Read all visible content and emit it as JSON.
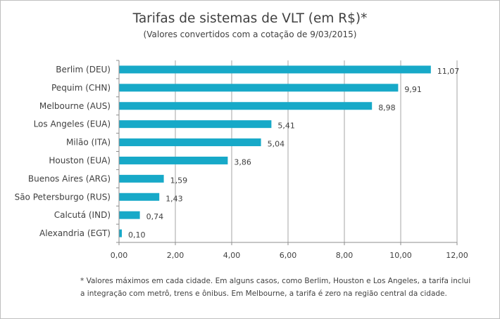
{
  "chart_data": {
    "type": "bar",
    "orientation": "horizontal",
    "title": "Tarifas de sistemas de VLT (em R$)*",
    "subtitle": "(Valores convertidos com a cotação de 9/03/2015)",
    "categories": [
      "Berlim (DEU)",
      "Pequim (CHN)",
      "Melbourne (AUS)",
      "Los Angeles (EUA)",
      "Milão (ITA)",
      "Houston (EUA)",
      "Buenos Aires (ARG)",
      "São Petersburgo (RUS)",
      "Calcutá (IND)",
      "Alexandria (EGT)"
    ],
    "values": [
      11.07,
      9.91,
      8.98,
      5.41,
      5.04,
      3.86,
      1.59,
      1.43,
      0.74,
      0.1
    ],
    "data_labels": [
      "11,07",
      "9,91",
      "8,98",
      "5,41",
      "5,04",
      "3,86",
      "1,59",
      "1,43",
      "0,74",
      "0,10"
    ],
    "xlim": [
      0,
      12
    ],
    "x_ticks": [
      0,
      2,
      4,
      6,
      8,
      10,
      12
    ],
    "x_tick_labels": [
      "0,00",
      "2,00",
      "4,00",
      "6,00",
      "8,00",
      "10,00",
      "12,00"
    ],
    "xlabel": "",
    "ylabel": "",
    "grid": "vertical",
    "legend": "none",
    "bar_color": "#17a9c8",
    "grid_color": "#a6a6a6"
  },
  "footnote": {
    "line1": "* Valores máximos em cada cidade. Em alguns casos, como Berlim, Houston e Los Angeles, a tarifa inclui",
    "line2": "a integração com metrô, trens e ônibus. Em Melbourne, a tarifa é zero na região central da cidade."
  }
}
